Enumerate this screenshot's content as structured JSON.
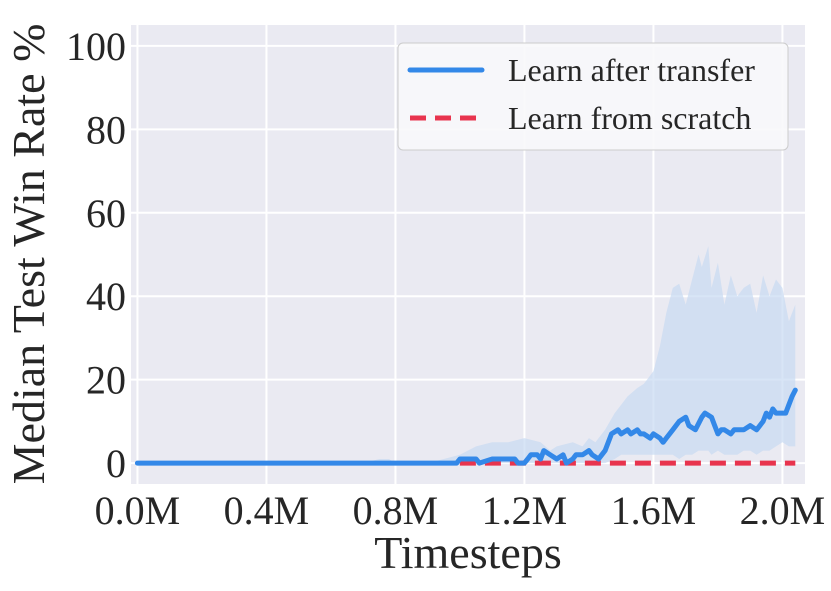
{
  "chart_data": {
    "type": "line",
    "xlabel": "Timesteps",
    "ylabel": "Median Test Win Rate %",
    "xlim": [
      -0.02,
      2.07
    ],
    "ylim": [
      -5,
      105
    ],
    "x_ticks": [
      0.0,
      0.4,
      0.8,
      1.2,
      1.6,
      2.0
    ],
    "x_tick_labels": [
      "0.0M",
      "0.4M",
      "0.8M",
      "1.2M",
      "1.6M",
      "2.0M"
    ],
    "y_ticks": [
      0,
      20,
      40,
      60,
      80,
      100
    ],
    "y_tick_labels": [
      "0",
      "20",
      "40",
      "60",
      "80",
      "100"
    ],
    "grid": true,
    "legend_position": "top-right",
    "background": "#eaeaf2",
    "series": [
      {
        "name": "Learn after transfer",
        "style": "solid",
        "color": "#3388e8",
        "x": [
          0.0,
          0.2,
          0.4,
          0.6,
          0.8,
          0.99,
          1.0,
          1.05,
          1.06,
          1.1,
          1.13,
          1.14,
          1.17,
          1.18,
          1.2,
          1.21,
          1.22,
          1.24,
          1.25,
          1.26,
          1.28,
          1.3,
          1.32,
          1.33,
          1.35,
          1.36,
          1.38,
          1.4,
          1.41,
          1.43,
          1.44,
          1.45,
          1.47,
          1.49,
          1.5,
          1.52,
          1.53,
          1.55,
          1.56,
          1.57,
          1.59,
          1.6,
          1.62,
          1.63,
          1.64,
          1.66,
          1.68,
          1.7,
          1.71,
          1.73,
          1.75,
          1.76,
          1.78,
          1.79,
          1.8,
          1.81,
          1.82,
          1.84,
          1.85,
          1.87,
          1.88,
          1.9,
          1.92,
          1.94,
          1.95,
          1.96,
          1.97,
          1.98,
          2.0,
          2.01,
          2.02,
          2.03,
          2.04
        ],
        "y": [
          0,
          0,
          0,
          0,
          0,
          0,
          1,
          1,
          0,
          1,
          1,
          1,
          1,
          0,
          0,
          1,
          2,
          2,
          1,
          3,
          2,
          1,
          2,
          0,
          1,
          2,
          2,
          3,
          2,
          1,
          2,
          3,
          7,
          8,
          7,
          8,
          7,
          8,
          7,
          7,
          6,
          7,
          6,
          5,
          6,
          8,
          10,
          11,
          9,
          8,
          11,
          12,
          11,
          9,
          7,
          8,
          8,
          7,
          8,
          8,
          8,
          9,
          8,
          10,
          12,
          11,
          13,
          12,
          12,
          12,
          14,
          16,
          17.5
        ]
      },
      {
        "name": "Learn from scratch",
        "style": "dashed",
        "color": "#e8344e",
        "x": [
          1.0,
          2.04
        ],
        "y": [
          0,
          0
        ]
      }
    ],
    "band": {
      "series": "Learn after transfer",
      "color": "#c8daf2",
      "x": [
        0.0,
        0.7,
        0.75,
        0.78,
        0.8,
        0.9,
        0.95,
        1.0,
        1.05,
        1.1,
        1.15,
        1.2,
        1.25,
        1.28,
        1.3,
        1.35,
        1.38,
        1.4,
        1.42,
        1.45,
        1.48,
        1.5,
        1.52,
        1.55,
        1.57,
        1.6,
        1.62,
        1.64,
        1.66,
        1.68,
        1.7,
        1.72,
        1.74,
        1.75,
        1.77,
        1.78,
        1.8,
        1.82,
        1.84,
        1.86,
        1.88,
        1.9,
        1.92,
        1.94,
        1.96,
        1.98,
        2.0,
        2.02,
        2.04
      ],
      "upper": [
        0,
        0,
        1,
        1,
        0,
        0,
        1,
        2,
        4,
        5,
        5,
        6,
        5,
        3,
        4,
        5,
        4,
        6,
        5,
        8,
        12,
        14,
        16,
        18,
        19,
        22,
        28,
        36,
        42,
        43,
        38,
        44,
        50,
        47,
        52,
        42,
        48,
        38,
        45,
        40,
        42,
        43,
        36,
        45,
        40,
        44,
        42,
        34,
        38
      ],
      "lower": [
        0,
        0,
        0,
        0,
        0,
        0,
        0,
        0,
        0,
        0,
        0,
        0,
        0,
        0,
        0,
        0,
        0,
        0,
        0,
        0,
        1,
        2,
        2,
        2,
        2,
        2,
        2,
        2,
        2,
        1,
        2,
        2,
        3,
        3,
        3,
        2,
        3,
        2,
        2,
        2,
        3,
        3,
        2,
        3,
        3,
        4,
        5,
        4,
        4
      ]
    }
  }
}
